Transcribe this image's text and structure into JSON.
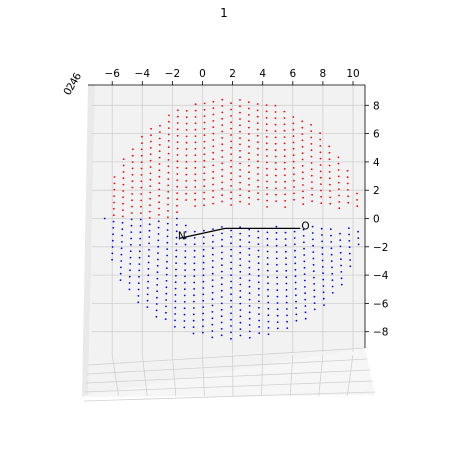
{
  "chart_data": {
    "type": "scatter",
    "projection": "3d",
    "title": "1",
    "xlabel": "",
    "ylabel": "",
    "zlabel": "",
    "xlim": [
      -7.5,
      11
    ],
    "zlim": [
      -9,
      9
    ],
    "xticks": [
      "−6",
      "−4",
      "−2",
      "0",
      "2",
      "4",
      "6",
      "8",
      "10"
    ],
    "zticks": [
      "8",
      "6",
      "4",
      "2",
      "0",
      "−2",
      "−4",
      "−6",
      "−8"
    ],
    "yticks_compressed": [
      "6",
      "4",
      "2",
      "0"
    ],
    "grid": true,
    "sphere": {
      "center": [
        2,
        0,
        0
      ],
      "radius": 8.5,
      "grid_step": 0.6
    },
    "series": [
      {
        "color": "#ff0000",
        "region": "z > 0",
        "marker": "dot"
      },
      {
        "color": "#0000ff",
        "region": "z < 0",
        "marker": "dot"
      }
    ],
    "path": {
      "color": "#000000",
      "points": [
        [
          -1.5,
          -1.4
        ],
        [
          1.5,
          -0.7
        ],
        [
          6.5,
          -0.7
        ]
      ],
      "labels": [
        "N",
        "O"
      ]
    }
  }
}
